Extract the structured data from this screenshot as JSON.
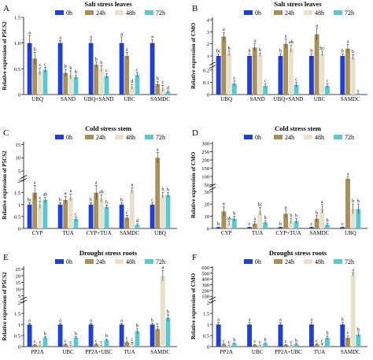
{
  "colors": {
    "series": [
      "#1f3fd6",
      "#a8905a",
      "#e6e0cc",
      "#5bc7cf"
    ]
  },
  "chart_data": [
    {
      "panel": "A",
      "type": "bar",
      "title": "Salt stress leaves",
      "ylabel": "Relative expression of P5CS2",
      "ylim": [
        0,
        1.5
      ],
      "yticks": [
        "0",
        "0.5",
        "1.0",
        "1.5"
      ],
      "categories": [
        "UBQ",
        "SAND",
        "UBQ+SAND",
        "UBC",
        "SAMDC"
      ],
      "series": [
        {
          "name": "0h",
          "values": [
            1.0,
            1.0,
            1.0,
            1.0,
            1.0
          ],
          "errors": [
            0.15,
            0.05,
            0.06,
            0.12,
            0.07
          ]
        },
        {
          "name": "24h",
          "values": [
            0.7,
            0.42,
            0.58,
            0.75,
            0.2
          ],
          "errors": [
            0.12,
            0.07,
            0.05,
            0.07,
            0.05
          ]
        },
        {
          "name": "48h",
          "values": [
            0.45,
            0.38,
            0.5,
            0.15,
            0.12
          ],
          "errors": [
            0.07,
            0.08,
            0.06,
            0.05,
            0.06
          ]
        },
        {
          "name": "72h",
          "values": [
            0.48,
            0.34,
            0.36,
            0.38,
            0.05
          ],
          "errors": [
            0.05,
            0.04,
            0.05,
            0.04,
            0.02
          ]
        }
      ],
      "sig_letters": [
        [
          "a",
          "b",
          "c",
          "c"
        ],
        [
          "a",
          "b",
          "b",
          "b"
        ],
        [
          "a",
          "b",
          "b",
          "c"
        ],
        [
          "a",
          "a",
          "d",
          "c"
        ],
        [
          "a",
          "b",
          "c",
          "d"
        ]
      ]
    },
    {
      "panel": "B",
      "type": "bar",
      "title": "Salt stress leaves",
      "ylabel": "Relative expression of CMO",
      "scale": "broken",
      "lower_ticks": [
        "0",
        "0.1",
        "0.2"
      ],
      "upper_ticks": [
        "1",
        "2",
        "3",
        "4"
      ],
      "categories": [
        "UBQ",
        "SAND",
        "UBQ+SAND",
        "UBC",
        "SAMDC"
      ],
      "series": [
        {
          "name": "0h",
          "values": [
            1.0,
            1.0,
            1.0,
            1.0,
            1.0
          ],
          "errors": [
            0.15,
            0.15,
            0.2,
            0.2,
            0.15
          ]
        },
        {
          "name": "24h",
          "values": [
            2.6,
            1.7,
            2.0,
            2.8,
            1.6
          ],
          "errors": [
            0.35,
            0.3,
            0.4,
            0.5,
            0.35
          ]
        },
        {
          "name": "48h",
          "values": [
            1.2,
            1.1,
            1.6,
            1.2,
            0.9
          ],
          "errors": [
            0.2,
            0.15,
            0.3,
            0.2,
            0.2
          ]
        },
        {
          "name": "72h",
          "values": [
            0.09,
            0.07,
            0.08,
            0.07,
            0.005
          ],
          "errors": [
            0.02,
            0.015,
            0.02,
            0.015,
            0.002
          ]
        }
      ],
      "sig_letters": [
        [
          "bc",
          "a",
          "b",
          "c"
        ],
        [
          "b",
          "a",
          "b",
          "c"
        ],
        [
          "b",
          "a",
          "ab",
          "c"
        ],
        [
          "b",
          "a",
          "bc",
          "c"
        ],
        [
          "b",
          "a",
          "b",
          "c"
        ]
      ]
    },
    {
      "panel": "C",
      "type": "bar",
      "title": "Cold stress stem",
      "ylabel": "Relative expression of P5CS2",
      "scale": "broken",
      "lower_ticks": [
        "0",
        "0.5",
        "1",
        "1.5",
        "2"
      ],
      "upper_ticks": [
        "5",
        "10",
        "15"
      ],
      "categories": [
        "CYP",
        "TUA",
        "CYP+TUA",
        "SAMDC",
        "UBQ"
      ],
      "series": [
        {
          "name": "0h",
          "values": [
            1.0,
            1.0,
            1.0,
            1.0,
            1.0
          ],
          "errors": [
            0.08,
            0.08,
            0.08,
            0.08,
            0.08
          ]
        },
        {
          "name": "24h",
          "values": [
            1.5,
            1.2,
            1.5,
            0.45,
            10.0
          ],
          "errors": [
            0.3,
            0.15,
            0.3,
            0.1,
            2.0
          ]
        },
        {
          "name": "48h",
          "values": [
            1.0,
            1.3,
            1.25,
            1.6,
            1.4
          ],
          "errors": [
            0.15,
            0.15,
            0.15,
            0.12,
            0.12
          ]
        },
        {
          "name": "72h",
          "values": [
            1.2,
            0.4,
            0.9,
            0.15,
            1.4
          ],
          "errors": [
            0.1,
            0.08,
            0.08,
            0.05,
            0.1
          ]
        }
      ],
      "sig_letters": [
        [
          "bc",
          "a",
          "c",
          "ab"
        ],
        [
          "b",
          "a",
          "a",
          "c"
        ],
        [
          "b",
          "a",
          "ab",
          "b"
        ],
        [
          "b",
          "c",
          "a",
          "d"
        ],
        [
          "c",
          "a",
          "b",
          "b"
        ]
      ]
    },
    {
      "panel": "D",
      "type": "bar",
      "title": "Cold stress stem",
      "ylabel": "Relative expression of CMO",
      "scale": "broken",
      "lower_ticks": [
        "0",
        "10",
        "20",
        "30"
      ],
      "upper_ticks": [
        "50",
        "100",
        "150",
        "200",
        "250",
        "300"
      ],
      "categories": [
        "CYP",
        "TUA",
        "CYP+TUA",
        "SAMDC",
        "UBQ"
      ],
      "series": [
        {
          "name": "0h",
          "values": [
            1.0,
            1.0,
            1.0,
            1.0,
            1.0
          ],
          "errors": [
            0.2,
            0.2,
            0.2,
            0.2,
            0.2
          ]
        },
        {
          "name": "24h",
          "values": [
            14,
            4,
            12,
            8,
            85
          ],
          "errors": [
            4,
            1.5,
            3,
            2.5,
            12
          ]
        },
        {
          "name": "48h",
          "values": [
            4,
            14,
            6,
            16,
            16
          ],
          "errors": [
            1.5,
            3,
            2,
            3.5,
            4
          ]
        },
        {
          "name": "72h",
          "values": [
            8,
            5,
            6,
            3,
            16
          ],
          "errors": [
            2,
            1.5,
            2,
            1.2,
            4
          ]
        }
      ],
      "sig_letters": [
        [
          "b",
          "a",
          "ab",
          "b"
        ],
        [
          "c",
          "a",
          "bc",
          "b"
        ],
        [
          "b",
          "a",
          "b",
          "b"
        ],
        [
          "c",
          "b",
          "a",
          "b"
        ],
        [
          "c",
          "a",
          "b",
          "b"
        ]
      ]
    },
    {
      "panel": "E",
      "type": "bar",
      "title": "Drought stress roots",
      "ylabel": "Relative expression of P5CS2",
      "scale": "broken",
      "lower_ticks": [
        "0",
        "0.5",
        "1",
        "1.5",
        "2"
      ],
      "upper_ticks": [
        "5",
        "10",
        "15",
        "20",
        "25"
      ],
      "categories": [
        "PP2A",
        "UBC",
        "PP2A+UBC",
        "TUA",
        "SAMDC"
      ],
      "series": [
        {
          "name": "0h",
          "values": [
            1.0,
            1.0,
            1.0,
            1.0,
            1.0
          ],
          "errors": [
            0.05,
            0.05,
            0.05,
            0.05,
            0.05
          ]
        },
        {
          "name": "24h",
          "values": [
            0.08,
            0.1,
            0.1,
            0.2,
            0.8
          ],
          "errors": [
            0.02,
            0.03,
            0.03,
            0.05,
            0.1
          ]
        },
        {
          "name": "48h",
          "values": [
            0.05,
            0.05,
            0.05,
            0.15,
            20
          ],
          "errors": [
            0.02,
            0.02,
            0.02,
            0.05,
            4
          ]
        },
        {
          "name": "72h",
          "values": [
            0.4,
            0.4,
            0.3,
            0.7,
            1.3
          ],
          "errors": [
            0.05,
            0.05,
            0.05,
            0.12,
            0.15
          ]
        }
      ],
      "sig_letters": [
        [
          "a",
          "c",
          "c",
          "b"
        ],
        [
          "a",
          "c",
          "c",
          "b"
        ],
        [
          "a",
          "c",
          "c",
          "b"
        ],
        [
          "a",
          "c",
          "c",
          "b"
        ],
        [
          "b",
          "c",
          "a",
          "b"
        ]
      ]
    },
    {
      "panel": "F",
      "type": "bar",
      "title": "Drought stress roots",
      "ylabel": "Relative expression of CMO",
      "scale": "broken",
      "lower_ticks": [
        "0",
        "0.5",
        "1",
        "1.5",
        "2"
      ],
      "upper_ticks": [
        "100",
        "200",
        "300",
        "400",
        "500",
        "600"
      ],
      "categories": [
        "PP2A",
        "UBC",
        "PP2A+UBC",
        "TUA",
        "SAMDC"
      ],
      "series": [
        {
          "name": "0h",
          "values": [
            1.0,
            1.0,
            1.0,
            1.0,
            1.0
          ],
          "errors": [
            0.08,
            0.08,
            0.08,
            0.08,
            0.08
          ]
        },
        {
          "name": "24h",
          "values": [
            0.1,
            0.08,
            0.08,
            0.1,
            0.4
          ],
          "errors": [
            0.03,
            0.02,
            0.02,
            0.03,
            0.1
          ]
        },
        {
          "name": "48h",
          "values": [
            0.05,
            0.05,
            0.05,
            0.1,
            480
          ],
          "errors": [
            0.02,
            0.02,
            0.02,
            0.03,
            25
          ]
        },
        {
          "name": "72h",
          "values": [
            0.15,
            0.15,
            0.12,
            0.4,
            0.55
          ],
          "errors": [
            0.03,
            0.03,
            0.03,
            0.08,
            0.1
          ]
        }
      ],
      "sig_letters": [
        [
          "a",
          "c",
          "c",
          "b"
        ],
        [
          "a",
          "c",
          "c",
          "b"
        ],
        [
          "a",
          "c",
          "c",
          "b"
        ],
        [
          "a",
          "c",
          "c",
          "b"
        ],
        [
          "b",
          "c",
          "a",
          "b"
        ]
      ]
    }
  ]
}
